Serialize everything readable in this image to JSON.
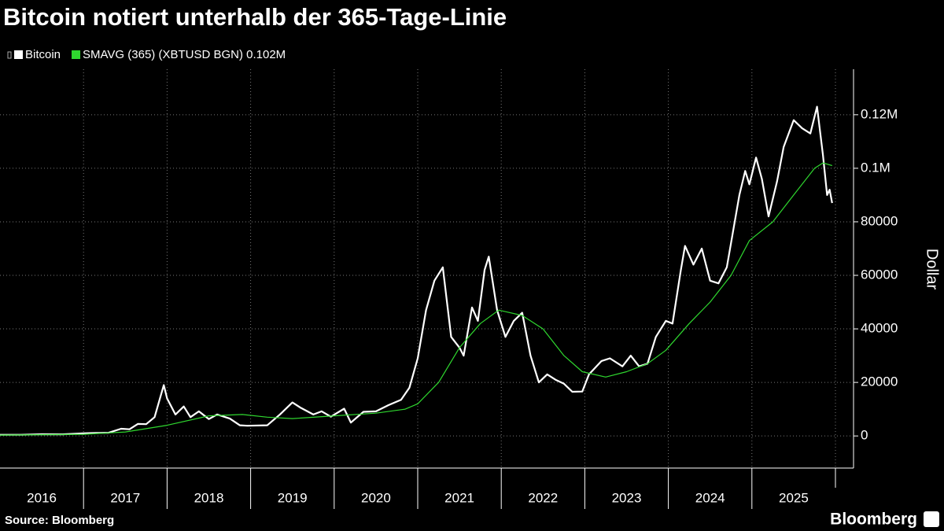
{
  "chart_data": {
    "type": "line",
    "title": "Bitcoin notiert unterhalb der 365-Tage-Linie",
    "y_label": "Dollar",
    "source": "Source: Bloomberg",
    "brand": "Bloomberg",
    "xlim": [
      2016,
      2026
    ],
    "xticks": [
      2016,
      2017,
      2018,
      2019,
      2020,
      2021,
      2022,
      2023,
      2024,
      2025
    ],
    "ylim": [
      -12000,
      137000
    ],
    "yticks": [
      0,
      20000,
      40000,
      60000,
      80000,
      {
        "value": 100000,
        "label": "0.1M"
      },
      {
        "value": 120000,
        "label": "0.12M"
      }
    ],
    "grid": true,
    "series": [
      {
        "name": "Bitcoin",
        "color": "#ffffff",
        "x": [
          2016.0,
          2016.25,
          2016.5,
          2016.75,
          2017.0,
          2017.15,
          2017.3,
          2017.45,
          2017.55,
          2017.65,
          2017.75,
          2017.85,
          2017.96,
          2018.0,
          2018.1,
          2018.2,
          2018.28,
          2018.38,
          2018.5,
          2018.6,
          2018.75,
          2018.87,
          2018.96,
          2019.2,
          2019.35,
          2019.5,
          2019.6,
          2019.75,
          2019.85,
          2019.96,
          2020.12,
          2020.2,
          2020.35,
          2020.5,
          2020.65,
          2020.8,
          2020.9,
          2021.0,
          2021.1,
          2021.2,
          2021.3,
          2021.4,
          2021.5,
          2021.55,
          2021.65,
          2021.72,
          2021.8,
          2021.85,
          2021.95,
          2022.05,
          2022.15,
          2022.25,
          2022.35,
          2022.45,
          2022.55,
          2022.65,
          2022.75,
          2022.85,
          2022.97,
          2023.05,
          2023.2,
          2023.3,
          2023.45,
          2023.55,
          2023.65,
          2023.75,
          2023.85,
          2023.97,
          2024.05,
          2024.15,
          2024.2,
          2024.3,
          2024.4,
          2024.5,
          2024.6,
          2024.7,
          2024.85,
          2024.92,
          2024.97,
          2025.05,
          2025.12,
          2025.2,
          2025.3,
          2025.38,
          2025.5,
          2025.6,
          2025.7,
          2025.78,
          2025.85,
          2025.9,
          2025.93,
          2025.96
        ],
        "values": [
          430,
          420,
          650,
          610,
          970,
          1100,
          1200,
          2700,
          2500,
          4500,
          4400,
          7000,
          19000,
          14000,
          8000,
          11000,
          7000,
          9200,
          6300,
          8000,
          6500,
          4000,
          3800,
          4000,
          8000,
          12500,
          10500,
          8000,
          9200,
          7200,
          10200,
          5000,
          9000,
          9200,
          11500,
          13500,
          18000,
          29000,
          47000,
          58000,
          63000,
          37000,
          33000,
          30000,
          48000,
          43000,
          62000,
          67000,
          47000,
          37000,
          43000,
          46000,
          30000,
          20000,
          23000,
          21000,
          19500,
          16500,
          16600,
          23000,
          28000,
          29000,
          26000,
          30000,
          26000,
          27000,
          37000,
          43000,
          42000,
          62000,
          71000,
          64000,
          70000,
          58000,
          57000,
          63000,
          90000,
          99000,
          94000,
          104000,
          96000,
          82000,
          95000,
          108000,
          118000,
          115000,
          113000,
          123000,
          105000,
          90000,
          92000,
          87000
        ]
      },
      {
        "name": "SMAVG (365) (XBTUSD BGN) 0.102M",
        "color": "#2fd82f",
        "x": [
          2016.0,
          2017.0,
          2017.5,
          2018.0,
          2018.5,
          2018.9,
          2019.2,
          2019.5,
          2020.0,
          2020.5,
          2020.85,
          2021.0,
          2021.25,
          2021.5,
          2021.75,
          2021.97,
          2022.25,
          2022.5,
          2022.75,
          2022.97,
          2023.25,
          2023.5,
          2023.75,
          2023.97,
          2024.25,
          2024.5,
          2024.75,
          2024.97,
          2025.25,
          2025.5,
          2025.75,
          2025.85,
          2025.96
        ],
        "values": [
          300,
          600,
          1500,
          4000,
          7500,
          8000,
          7000,
          6500,
          7500,
          8500,
          10000,
          12000,
          20000,
          33000,
          42000,
          47000,
          45000,
          40000,
          30000,
          24000,
          22000,
          24000,
          27000,
          32000,
          42000,
          50000,
          60000,
          73000,
          80000,
          90000,
          100000,
          102000,
          101000
        ]
      }
    ]
  }
}
